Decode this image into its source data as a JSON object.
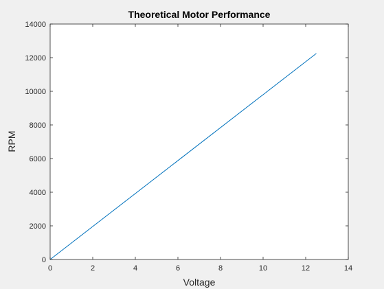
{
  "chart_data": {
    "type": "line",
    "title": "Theoretical Motor Performance",
    "xlabel": "Voltage",
    "ylabel": "RPM",
    "xlim": [
      0,
      14
    ],
    "ylim": [
      0,
      14000
    ],
    "xticks": [
      0,
      2,
      4,
      6,
      8,
      10,
      12,
      14
    ],
    "yticks": [
      0,
      2000,
      4000,
      6000,
      8000,
      10000,
      12000,
      14000
    ],
    "xtick_labels": [
      "0",
      "2",
      "4",
      "6",
      "8",
      "10",
      "12",
      "14"
    ],
    "ytick_labels": [
      "0",
      "2000",
      "4000",
      "6000",
      "8000",
      "10000",
      "12000",
      "14000"
    ],
    "grid": false,
    "legend": "none",
    "series": [
      {
        "color": "#0072bd",
        "x": [
          0,
          12.5
        ],
        "y": [
          0,
          12250
        ]
      }
    ]
  }
}
